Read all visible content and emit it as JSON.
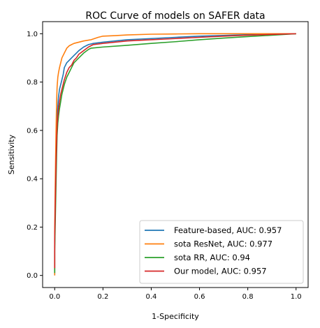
{
  "chart_data": {
    "type": "line",
    "title": "ROC Curve of models on SAFER data",
    "xlabel": "1-Specificity",
    "ylabel": "Sensitivity",
    "xlim": [
      -0.05,
      1.05
    ],
    "ylim": [
      -0.05,
      1.05
    ],
    "xticks": [
      "0.0",
      "0.2",
      "0.4",
      "0.6",
      "0.8",
      "1.0"
    ],
    "yticks": [
      "0.0",
      "0.2",
      "0.4",
      "0.6",
      "0.8",
      "1.0"
    ],
    "grid": false,
    "legend_position": "lower-right",
    "series": [
      {
        "name": "Feature-based, AUC: 0.957",
        "color": "#1f77b4",
        "x": [
          0,
          0,
          0.002,
          0.004,
          0.006,
          0.008,
          0.01,
          0.013,
          0.016,
          0.02,
          0.025,
          0.03,
          0.035,
          0.04,
          0.05,
          0.06,
          0.07,
          0.08,
          0.09,
          0.1,
          0.12,
          0.14,
          0.16,
          0.2,
          0.25,
          0.3,
          0.4,
          0.5,
          0.6,
          0.7,
          0.8,
          0.9,
          1.0
        ],
        "y": [
          0,
          0.12,
          0.25,
          0.38,
          0.5,
          0.6,
          0.66,
          0.7,
          0.74,
          0.77,
          0.79,
          0.81,
          0.83,
          0.86,
          0.88,
          0.89,
          0.9,
          0.91,
          0.92,
          0.93,
          0.945,
          0.955,
          0.96,
          0.965,
          0.97,
          0.975,
          0.98,
          0.985,
          0.99,
          0.993,
          0.996,
          0.998,
          1.0
        ]
      },
      {
        "name": "sota ResNet, AUC: 0.977",
        "color": "#ff7f0e",
        "x": [
          0,
          0,
          0.002,
          0.004,
          0.006,
          0.008,
          0.01,
          0.013,
          0.016,
          0.02,
          0.025,
          0.03,
          0.04,
          0.05,
          0.06,
          0.07,
          0.08,
          0.1,
          0.12,
          0.15,
          0.18,
          0.2,
          0.25,
          0.3,
          0.4,
          0.5,
          0.6,
          0.7,
          0.8,
          0.9,
          1.0
        ],
        "y": [
          0,
          0.18,
          0.35,
          0.5,
          0.62,
          0.72,
          0.78,
          0.82,
          0.84,
          0.86,
          0.88,
          0.9,
          0.92,
          0.94,
          0.95,
          0.955,
          0.96,
          0.965,
          0.97,
          0.975,
          0.985,
          0.99,
          0.992,
          0.995,
          0.998,
          0.999,
          1.0,
          1.0,
          1.0,
          1.0,
          1.0
        ]
      },
      {
        "name": "sota RR, AUC: 0.94",
        "color": "#2ca02c",
        "x": [
          0,
          0,
          0.002,
          0.004,
          0.006,
          0.008,
          0.01,
          0.013,
          0.016,
          0.02,
          0.025,
          0.03,
          0.035,
          0.04,
          0.05,
          0.06,
          0.07,
          0.08,
          0.1,
          0.12,
          0.14,
          0.15,
          0.2,
          0.3,
          0.4,
          0.5,
          0.6,
          0.7,
          0.8,
          0.9,
          1.0
        ],
        "y": [
          0.01,
          0.1,
          0.2,
          0.3,
          0.4,
          0.5,
          0.58,
          0.63,
          0.66,
          0.69,
          0.72,
          0.75,
          0.77,
          0.79,
          0.82,
          0.84,
          0.86,
          0.88,
          0.9,
          0.92,
          0.935,
          0.94,
          0.945,
          0.952,
          0.96,
          0.967,
          0.975,
          0.982,
          0.988,
          0.994,
          1.0
        ]
      },
      {
        "name": "Our model, AUC: 0.957",
        "color": "#d62728",
        "x": [
          0,
          0,
          0.002,
          0.004,
          0.006,
          0.008,
          0.01,
          0.013,
          0.016,
          0.02,
          0.025,
          0.03,
          0.035,
          0.04,
          0.05,
          0.06,
          0.07,
          0.08,
          0.09,
          0.1,
          0.12,
          0.14,
          0.16,
          0.2,
          0.25,
          0.3,
          0.4,
          0.5,
          0.6,
          0.7,
          0.8,
          0.9,
          1.0
        ],
        "y": [
          0.03,
          0.15,
          0.27,
          0.38,
          0.48,
          0.56,
          0.62,
          0.66,
          0.69,
          0.72,
          0.75,
          0.77,
          0.79,
          0.81,
          0.84,
          0.86,
          0.87,
          0.89,
          0.9,
          0.915,
          0.93,
          0.945,
          0.955,
          0.96,
          0.965,
          0.97,
          0.975,
          0.98,
          0.985,
          0.99,
          0.994,
          0.997,
          1.0
        ]
      }
    ]
  }
}
